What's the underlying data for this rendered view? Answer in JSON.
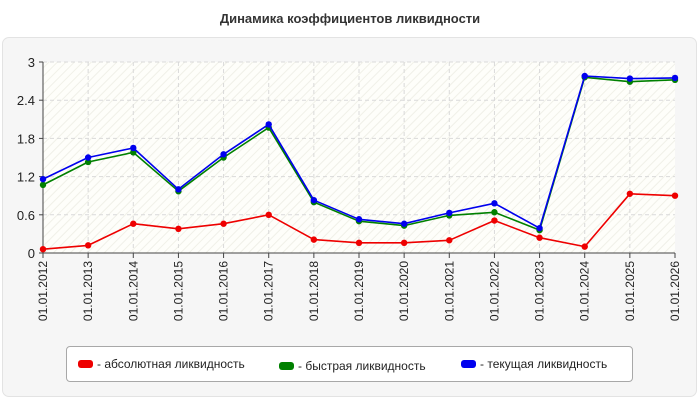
{
  "chart_data": {
    "type": "line",
    "title": "Динамика коэффициентов ликвидности",
    "xlabel": "",
    "ylabel": "",
    "categories": [
      "01.01.2012",
      "01.01.2013",
      "01.01.2014",
      "01.01.2015",
      "01.01.2016",
      "01.01.2017",
      "01.01.2018",
      "01.01.2019",
      "01.01.2020",
      "01.01.2021",
      "01.01.2022",
      "01.01.2023",
      "01.01.2024",
      "01.01.2025",
      "01.01.2026"
    ],
    "yticks": [
      "0",
      "0.6",
      "1.2",
      "1.8",
      "2.4",
      "3"
    ],
    "ylim": [
      0,
      3
    ],
    "grid": true,
    "legend_position": "bottom",
    "series": [
      {
        "name": "- абсолютная ликвидность",
        "color": "#ee0000",
        "values": [
          0.06,
          0.12,
          0.46,
          0.38,
          0.46,
          0.6,
          0.21,
          0.16,
          0.16,
          0.2,
          0.51,
          0.24,
          0.1,
          0.93,
          0.9
        ]
      },
      {
        "name": "- быстрая ликвидность",
        "color": "#008000",
        "values": [
          1.07,
          1.43,
          1.58,
          0.97,
          1.5,
          1.97,
          0.8,
          0.5,
          0.43,
          0.59,
          0.64,
          0.36,
          2.76,
          2.69,
          2.72
        ]
      },
      {
        "name": "- текущая ликвидность",
        "color": "#0000ee",
        "values": [
          1.16,
          1.5,
          1.65,
          1.0,
          1.55,
          2.02,
          0.83,
          0.53,
          0.46,
          0.63,
          0.78,
          0.39,
          2.78,
          2.74,
          2.75
        ]
      }
    ]
  }
}
